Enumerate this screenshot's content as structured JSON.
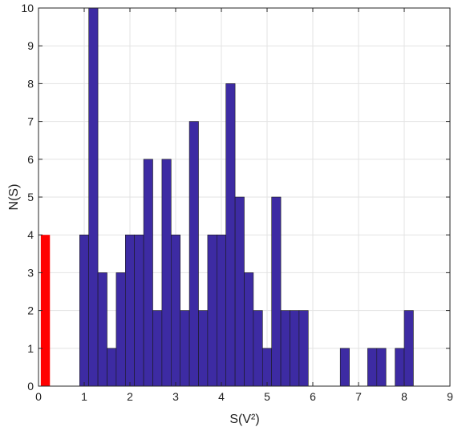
{
  "chart_data": {
    "type": "bar",
    "xlabel": "S(V²)",
    "ylabel": "N(S)",
    "xlim": [
      0,
      9
    ],
    "ylim": [
      0,
      10
    ],
    "xticks": [
      0,
      1,
      2,
      3,
      4,
      5,
      6,
      7,
      8,
      9
    ],
    "yticks": [
      0,
      1,
      2,
      3,
      4,
      5,
      6,
      7,
      8,
      9,
      10
    ],
    "grid": true,
    "bin_width": 0.2,
    "series": [
      {
        "color": "#3d2ba3",
        "bins": [
          {
            "x0": 0.9,
            "x1": 1.1,
            "value": 4
          },
          {
            "x0": 1.1,
            "x1": 1.3,
            "value": 10
          },
          {
            "x0": 1.3,
            "x1": 1.5,
            "value": 3
          },
          {
            "x0": 1.5,
            "x1": 1.7,
            "value": 1
          },
          {
            "x0": 1.7,
            "x1": 1.9,
            "value": 3
          },
          {
            "x0": 1.9,
            "x1": 2.1,
            "value": 4
          },
          {
            "x0": 2.1,
            "x1": 2.3,
            "value": 4
          },
          {
            "x0": 2.3,
            "x1": 2.5,
            "value": 6
          },
          {
            "x0": 2.5,
            "x1": 2.7,
            "value": 2
          },
          {
            "x0": 2.7,
            "x1": 2.9,
            "value": 6
          },
          {
            "x0": 2.9,
            "x1": 3.1,
            "value": 4
          },
          {
            "x0": 3.1,
            "x1": 3.3,
            "value": 2
          },
          {
            "x0": 3.3,
            "x1": 3.5,
            "value": 7
          },
          {
            "x0": 3.5,
            "x1": 3.7,
            "value": 2
          },
          {
            "x0": 3.7,
            "x1": 3.9,
            "value": 4
          },
          {
            "x0": 3.9,
            "x1": 4.1,
            "value": 4
          },
          {
            "x0": 4.1,
            "x1": 4.3,
            "value": 8
          },
          {
            "x0": 4.3,
            "x1": 4.5,
            "value": 5
          },
          {
            "x0": 4.5,
            "x1": 4.7,
            "value": 3
          },
          {
            "x0": 4.7,
            "x1": 4.9,
            "value": 2
          },
          {
            "x0": 4.9,
            "x1": 5.1,
            "value": 1
          },
          {
            "x0": 5.1,
            "x1": 5.3,
            "value": 5
          },
          {
            "x0": 5.3,
            "x1": 5.5,
            "value": 2
          },
          {
            "x0": 5.5,
            "x1": 5.7,
            "value": 2
          },
          {
            "x0": 5.7,
            "x1": 5.9,
            "value": 2
          },
          {
            "x0": 6.6,
            "x1": 6.8,
            "value": 1
          },
          {
            "x0": 7.2,
            "x1": 7.4,
            "value": 1
          },
          {
            "x0": 7.4,
            "x1": 7.6,
            "value": 1
          },
          {
            "x0": 7.8,
            "x1": 8.0,
            "value": 1
          },
          {
            "x0": 8.0,
            "x1": 8.2,
            "value": 2
          }
        ]
      },
      {
        "color": "#ff0000",
        "bins": [
          {
            "x0": 0.05,
            "x1": 0.25,
            "value": 4
          }
        ]
      }
    ]
  }
}
